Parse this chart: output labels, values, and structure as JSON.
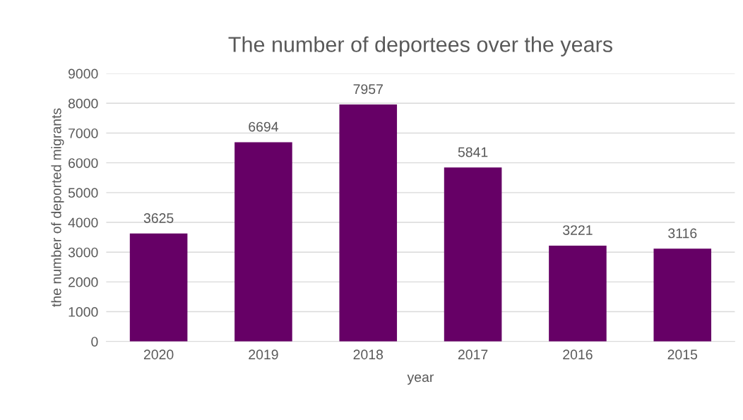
{
  "chart_data": {
    "type": "bar",
    "title": "The number of deportees over the years",
    "xlabel": "year",
    "ylabel": "the number of deported migrants",
    "categories": [
      "2020",
      "2019",
      "2018",
      "2017",
      "2016",
      "2015"
    ],
    "series": [
      {
        "color": "#660066",
        "values": [
          3625,
          6694,
          7957,
          5841,
          3221,
          3116
        ]
      }
    ],
    "ylim": [
      0,
      9000
    ],
    "yticks": [
      0,
      1000,
      2000,
      3000,
      4000,
      5000,
      6000,
      7000,
      8000,
      9000
    ],
    "grid": "y",
    "data_labels": true,
    "legend": false
  }
}
